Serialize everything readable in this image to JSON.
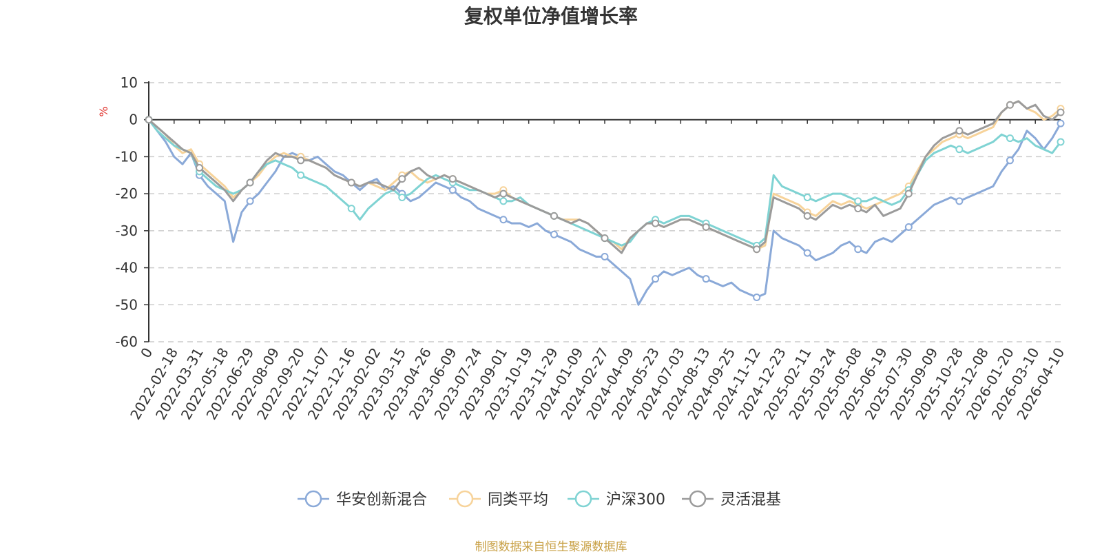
{
  "chart_data": {
    "type": "line",
    "title": "复权单位净值增长率",
    "ylabel": "%",
    "ylim": [
      -60,
      10
    ],
    "yticks": [
      10,
      0,
      -10,
      -20,
      -30,
      -40,
      -50,
      -60
    ],
    "x_tick_labels": [
      "0",
      "2022-02-18",
      "2022-03-31",
      "2022-05-18",
      "2022-06-29",
      "2022-08-09",
      "2022-09-20",
      "2022-11-07",
      "2022-12-16",
      "2023-02-02",
      "2023-03-15",
      "2023-04-26",
      "2023-06-09",
      "2023-07-24",
      "2023-09-01",
      "2023-10-19",
      "2023-11-29",
      "2024-01-09",
      "2024-02-27",
      "2024-04-09",
      "2024-05-23",
      "2024-07-03",
      "2024-08-13",
      "2024-09-25",
      "2024-11-12",
      "2024-12-23",
      "2025-02-11",
      "2025-03-24",
      "2025-05-08",
      "2025-06-19",
      "2025-07-30",
      "2025-09-09",
      "2025-10-28",
      "2025-12-08",
      "2026-01-20",
      "2026-03-10",
      "2026-04-10"
    ],
    "grid": "horizontal dashed",
    "legend_position": "bottom",
    "series": [
      {
        "name": "华安创新混合",
        "color": "#8aa9d8",
        "values": [
          0,
          -3,
          -6,
          -10,
          -12,
          -9,
          -15,
          -18,
          -20,
          -22,
          -33,
          -25,
          -22,
          -20,
          -17,
          -14,
          -10,
          -9,
          -10,
          -11,
          -10,
          -12,
          -14,
          -15,
          -17,
          -19,
          -17,
          -16,
          -19,
          -18,
          -20,
          -22,
          -21,
          -19,
          -17,
          -18,
          -19,
          -21,
          -22,
          -24,
          -25,
          -26,
          -27,
          -28,
          -28,
          -29,
          -28,
          -30,
          -31,
          -32,
          -33,
          -35,
          -36,
          -37,
          -37,
          -39,
          -41,
          -43,
          -50,
          -46,
          -43,
          -41,
          -42,
          -41,
          -40,
          -42,
          -43,
          -44,
          -45,
          -44,
          -46,
          -47,
          -48,
          -47,
          -30,
          -32,
          -33,
          -34,
          -36,
          -38,
          -37,
          -36,
          -34,
          -33,
          -35,
          -36,
          -33,
          -32,
          -33,
          -31,
          -29,
          -27,
          -25,
          -23,
          -22,
          -21,
          -22,
          -21,
          -20,
          -19,
          -18,
          -14,
          -11,
          -8,
          -3,
          -5,
          -8,
          -5,
          -1
        ]
      },
      {
        "name": "同类平均",
        "color": "#f7d39a",
        "values": [
          0,
          -2,
          -4,
          -7,
          -9,
          -8,
          -12,
          -14,
          -16,
          -18,
          -21,
          -19,
          -17,
          -15,
          -12,
          -10,
          -9,
          -10,
          -10,
          -11,
          -12,
          -13,
          -15,
          -16,
          -17,
          -18,
          -17,
          -18,
          -19,
          -17,
          -15,
          -14,
          -16,
          -17,
          -16,
          -15,
          -16,
          -17,
          -18,
          -19,
          -20,
          -20,
          -19,
          -21,
          -22,
          -23,
          -24,
          -25,
          -26,
          -27,
          -27,
          -27,
          -28,
          -30,
          -32,
          -33,
          -35,
          -32,
          -30,
          -28,
          -28,
          -29,
          -28,
          -27,
          -27,
          -28,
          -29,
          -30,
          -31,
          -32,
          -33,
          -34,
          -35,
          -34,
          -20,
          -21,
          -22,
          -23,
          -25,
          -26,
          -24,
          -22,
          -23,
          -22,
          -23,
          -24,
          -23,
          -22,
          -21,
          -20,
          -18,
          -14,
          -10,
          -8,
          -6,
          -5,
          -4,
          -5,
          -4,
          -3,
          -2,
          2,
          4,
          5,
          3,
          2,
          0,
          1,
          3
        ]
      },
      {
        "name": "沪深300",
        "color": "#7fd3d3",
        "values": [
          0,
          -3,
          -5,
          -7,
          -8,
          -9,
          -14,
          -16,
          -18,
          -19,
          -20,
          -19,
          -17,
          -14,
          -12,
          -11,
          -12,
          -13,
          -15,
          -16,
          -17,
          -18,
          -20,
          -22,
          -24,
          -27,
          -24,
          -22,
          -20,
          -19,
          -21,
          -20,
          -18,
          -16,
          -15,
          -16,
          -17,
          -18,
          -19,
          -19,
          -20,
          -21,
          -22,
          -22,
          -21,
          -23,
          -24,
          -25,
          -26,
          -27,
          -28,
          -29,
          -30,
          -31,
          -32,
          -33,
          -34,
          -33,
          -30,
          -28,
          -27,
          -28,
          -27,
          -26,
          -26,
          -27,
          -28,
          -29,
          -30,
          -31,
          -32,
          -33,
          -34,
          -32,
          -15,
          -18,
          -19,
          -20,
          -21,
          -22,
          -21,
          -20,
          -20,
          -21,
          -22,
          -22,
          -21,
          -22,
          -23,
          -22,
          -19,
          -15,
          -11,
          -9,
          -8,
          -7,
          -8,
          -9,
          -8,
          -7,
          -6,
          -4,
          -5,
          -6,
          -5,
          -7,
          -8,
          -9,
          -6
        ]
      },
      {
        "name": "灵活混基",
        "color": "#9b9b9b",
        "values": [
          0,
          -2,
          -4,
          -6,
          -8,
          -9,
          -13,
          -15,
          -17,
          -19,
          -22,
          -19,
          -17,
          -14,
          -11,
          -9,
          -10,
          -10,
          -11,
          -11,
          -12,
          -13,
          -15,
          -16,
          -17,
          -18,
          -17,
          -17,
          -18,
          -19,
          -16,
          -14,
          -13,
          -15,
          -16,
          -15,
          -16,
          -17,
          -18,
          -19,
          -20,
          -21,
          -20,
          -21,
          -22,
          -23,
          -24,
          -25,
          -26,
          -27,
          -28,
          -27,
          -28,
          -30,
          -32,
          -34,
          -36,
          -32,
          -30,
          -28,
          -28,
          -29,
          -28,
          -27,
          -27,
          -28,
          -29,
          -30,
          -31,
          -32,
          -33,
          -34,
          -35,
          -33,
          -21,
          -22,
          -23,
          -24,
          -26,
          -27,
          -25,
          -23,
          -24,
          -23,
          -24,
          -25,
          -23,
          -26,
          -25,
          -24,
          -20,
          -15,
          -10,
          -7,
          -5,
          -4,
          -3,
          -4,
          -3,
          -2,
          -1,
          2,
          4,
          5,
          3,
          4,
          1,
          0,
          2
        ]
      }
    ]
  },
  "source_note": "制图数据来自恒生聚源数据库",
  "colors": {
    "title": "#333333",
    "axis": "#333333",
    "grid": "#cccccc",
    "unit": "#e0302a",
    "source": "#c8a045"
  }
}
